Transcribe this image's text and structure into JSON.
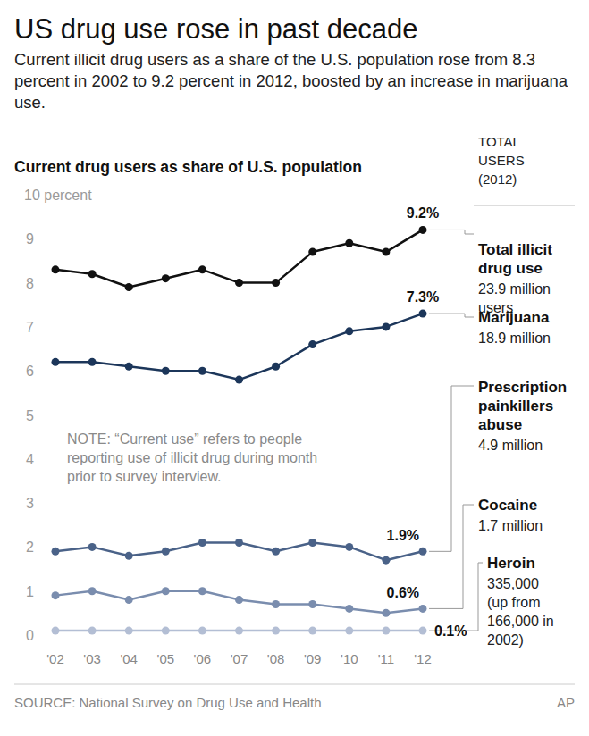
{
  "chart_data": {
    "type": "line",
    "title": "US drug use rose in past decade",
    "subtitle": "Current illicit drug users as a share of the U.S. population rose from 8.3 percent in 2002 to 9.2 percent in 2012, boosted by an increase in marijuana use.",
    "chart_title": "Current drug users as share of U.S. population",
    "legend_title": "TOTAL USERS (2012)",
    "note": "NOTE: “Current use” refers to people reporting use of illicit drug during month prior to survey interview.",
    "source": "SOURCE: National Survey on Drug Use and Health",
    "credit": "AP",
    "categories": [
      "'02",
      "'03",
      "'04",
      "'05",
      "'06",
      "'07",
      "'08",
      "'09",
      "'10",
      "'11",
      "'12"
    ],
    "ylim": [
      0,
      10
    ],
    "yticks": [
      0,
      1,
      2,
      3,
      4,
      5,
      6,
      7,
      8,
      9,
      {
        "value": 10,
        "label": "10 percent"
      }
    ],
    "grid": false,
    "marker": "circle",
    "series": [
      {
        "name": "Total illicit drug use",
        "users": "23.9 million users",
        "color": "#111111",
        "values": [
          8.3,
          8.2,
          7.9,
          8.1,
          8.3,
          8.0,
          8.0,
          8.7,
          8.9,
          8.7,
          9.2
        ],
        "value_labels": [
          null,
          null,
          null,
          null,
          null,
          null,
          null,
          null,
          null,
          null,
          "9.2%"
        ]
      },
      {
        "name": "Marijuana",
        "users": "18.9 million",
        "color": "#1c365a",
        "values": [
          6.2,
          6.2,
          6.1,
          6.0,
          6.0,
          5.8,
          6.1,
          6.6,
          6.9,
          7.0,
          7.3
        ],
        "value_labels": [
          null,
          null,
          null,
          null,
          null,
          null,
          null,
          null,
          null,
          null,
          "7.3%"
        ]
      },
      {
        "name": "Prescription painkillers abuse",
        "users": "4.9 million",
        "color": "#4a6288",
        "values": [
          1.9,
          2.0,
          1.8,
          1.9,
          2.1,
          2.1,
          1.9,
          2.1,
          2.0,
          1.7,
          1.9
        ],
        "value_labels": [
          null,
          null,
          null,
          null,
          null,
          null,
          null,
          null,
          null,
          null,
          "1.9%"
        ]
      },
      {
        "name": "Cocaine",
        "users": "1.7 million",
        "color": "#7a8dae",
        "values": [
          0.9,
          1.0,
          0.8,
          1.0,
          1.0,
          0.8,
          0.7,
          0.7,
          0.6,
          0.5,
          0.6
        ],
        "value_labels": [
          null,
          null,
          null,
          null,
          null,
          null,
          null,
          null,
          null,
          null,
          "0.6%"
        ]
      },
      {
        "name": "Heroin",
        "users": "335,000 (up from 166,000 in 2002)",
        "color": "#b3bed4",
        "values": [
          0.1,
          0.1,
          0.1,
          0.1,
          0.1,
          0.1,
          0.1,
          0.1,
          0.1,
          0.1,
          0.1
        ],
        "value_labels": [
          null,
          null,
          null,
          null,
          null,
          null,
          null,
          null,
          null,
          null,
          "0.1%"
        ]
      }
    ]
  }
}
